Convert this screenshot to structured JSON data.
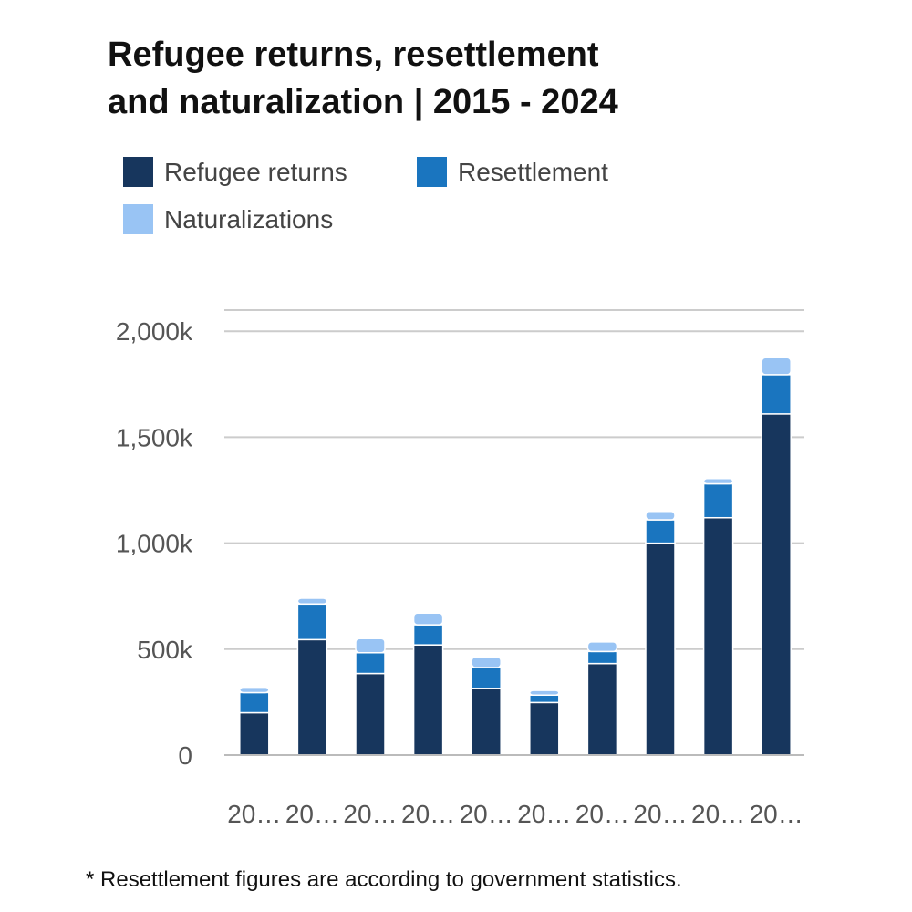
{
  "title": {
    "line1": "Refugee returns, resettlement",
    "line2": "and naturalization | 2015 - 2024"
  },
  "legend": [
    {
      "label": "Refugee returns",
      "color": "#17365d"
    },
    {
      "label": "Resettlement",
      "color": "#1a75bf"
    },
    {
      "label": "Naturalizations",
      "color": "#99c4f4"
    }
  ],
  "footnote": "* Resettlement figures are according to government statistics.",
  "chart_data": {
    "type": "bar",
    "stacked": true,
    "categories": [
      "20…",
      "20…",
      "20…",
      "20…",
      "20…",
      "20…",
      "20…",
      "20…",
      "20…",
      "20…"
    ],
    "series": [
      {
        "name": "Refugee returns",
        "color": "#17365d",
        "values": [
          200,
          545,
          385,
          520,
          315,
          248,
          432,
          1000,
          1120,
          1610
        ]
      },
      {
        "name": "Resettlement",
        "color": "#1a75bf",
        "values": [
          95,
          168,
          98,
          95,
          98,
          35,
          57,
          110,
          160,
          185
        ]
      },
      {
        "name": "Naturalizations",
        "color": "#99c4f4",
        "values": [
          25,
          27,
          67,
          55,
          50,
          22,
          45,
          40,
          25,
          80
        ]
      }
    ],
    "y_ticks": [
      0,
      500,
      1000,
      1500,
      2000
    ],
    "y_tick_labels": [
      "0",
      "500k",
      "1,000k",
      "1,500k",
      "2,000k"
    ],
    "ylim": [
      0,
      2000
    ],
    "grid": true
  }
}
